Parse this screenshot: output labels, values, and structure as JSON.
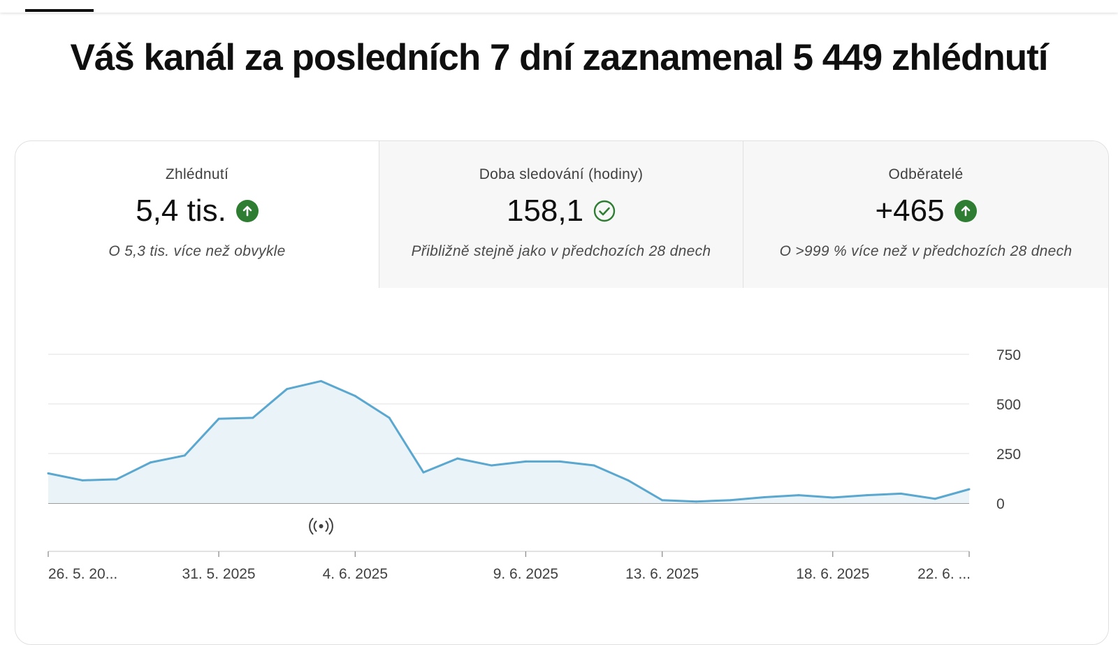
{
  "headline": "Váš kanál za posledních 7 dní zaznamenal 5 449 zhlédnutí",
  "metrics": [
    {
      "label": "Zhlédnutí",
      "value": "5,4 tis.",
      "trend_icon": "arrow-up-icon",
      "note": "O 5,3 tis. více než obvykle"
    },
    {
      "label": "Doba sledování (hodiny)",
      "value": "158,1",
      "trend_icon": "check-circle-icon",
      "note": "Přibližně stejně jako v předchozích 28 dnech"
    },
    {
      "label": "Odběratelé",
      "value": "+465",
      "trend_icon": "arrow-up-icon",
      "note": "O >999 % více než v předchozích 28 dnech"
    }
  ],
  "colors": {
    "line": "#5aa7cf",
    "fill": "#eaf3f8",
    "trend_up": "#2e7d32"
  },
  "chart_data": {
    "type": "area",
    "y_ticks": [
      750,
      500,
      250,
      0
    ],
    "ylim": [
      0,
      750
    ],
    "grid": true,
    "x_ticks": [
      {
        "index": 0,
        "label": "26. 5. 20..."
      },
      {
        "index": 5,
        "label": "31. 5. 2025"
      },
      {
        "index": 9,
        "label": "4. 6. 2025"
      },
      {
        "index": 14,
        "label": "9. 6. 2025"
      },
      {
        "index": 18,
        "label": "13. 6. 2025"
      },
      {
        "index": 23,
        "label": "18. 6. 2025"
      },
      {
        "index": 27,
        "label": "22. 6. ..."
      }
    ],
    "values": [
      150,
      115,
      120,
      205,
      240,
      425,
      430,
      575,
      615,
      540,
      430,
      155,
      225,
      190,
      210,
      210,
      190,
      115,
      15,
      8,
      15,
      30,
      40,
      28,
      40,
      48,
      22,
      70
    ],
    "marker": {
      "index": 8,
      "icon": "live-broadcast-icon"
    }
  }
}
